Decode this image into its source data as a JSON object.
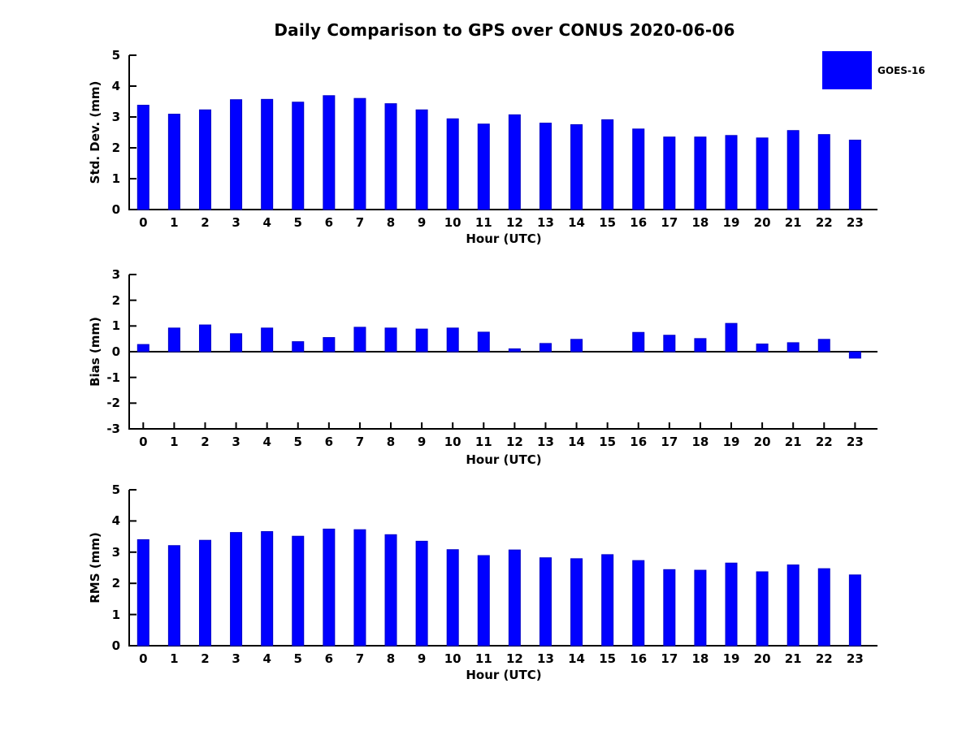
{
  "title": "Daily Comparison to GPS over CONUS 2020-06-06",
  "legend": {
    "label": "GOES-16",
    "color": "#0000FF"
  },
  "colors": {
    "bar": "#0000FF",
    "bar_edge": "#0000C8",
    "axis": "#000000",
    "text": "#000000",
    "background": "#FFFFFF"
  },
  "chart_data": [
    {
      "type": "bar",
      "title": "",
      "xlabel": "Hour (UTC)",
      "ylabel": "Std. Dev. (mm)",
      "categories": [
        "0",
        "1",
        "2",
        "3",
        "4",
        "5",
        "6",
        "7",
        "8",
        "9",
        "10",
        "11",
        "12",
        "13",
        "14",
        "15",
        "16",
        "17",
        "18",
        "19",
        "20",
        "21",
        "22",
        "23"
      ],
      "values": [
        3.38,
        3.09,
        3.23,
        3.56,
        3.57,
        3.48,
        3.69,
        3.6,
        3.43,
        3.23,
        2.94,
        2.77,
        3.07,
        2.8,
        2.75,
        2.91,
        2.61,
        2.35,
        2.35,
        2.4,
        2.32,
        2.56,
        2.43,
        2.25
      ],
      "ylim": [
        0,
        5
      ],
      "yticks": [
        0,
        1,
        2,
        3,
        4,
        5
      ],
      "grid": false,
      "legend_entry": "GOES-16",
      "legend_position": "upper-right-outside"
    },
    {
      "type": "bar",
      "title": "",
      "xlabel": "Hour (UTC)",
      "ylabel": "Bias (mm)",
      "categories": [
        "0",
        "1",
        "2",
        "3",
        "4",
        "5",
        "6",
        "7",
        "8",
        "9",
        "10",
        "11",
        "12",
        "13",
        "14",
        "15",
        "16",
        "17",
        "18",
        "19",
        "20",
        "21",
        "22",
        "23"
      ],
      "values": [
        0.28,
        0.92,
        1.04,
        0.7,
        0.92,
        0.39,
        0.55,
        0.95,
        0.92,
        0.88,
        0.92,
        0.76,
        0.11,
        0.32,
        0.48,
        0.0,
        0.75,
        0.64,
        0.51,
        1.1,
        0.3,
        0.35,
        0.48,
        -0.25
      ],
      "ylim": [
        -3,
        3
      ],
      "yticks": [
        -3,
        -2,
        -1,
        0,
        1,
        2,
        3
      ],
      "grid": false,
      "legend_entry": "GOES-16"
    },
    {
      "type": "bar",
      "title": "",
      "xlabel": "Hour (UTC)",
      "ylabel": "RMS (mm)",
      "categories": [
        "0",
        "1",
        "2",
        "3",
        "4",
        "5",
        "6",
        "7",
        "8",
        "9",
        "10",
        "11",
        "12",
        "13",
        "14",
        "15",
        "16",
        "17",
        "18",
        "19",
        "20",
        "21",
        "22",
        "23"
      ],
      "values": [
        3.4,
        3.21,
        3.38,
        3.63,
        3.66,
        3.51,
        3.74,
        3.72,
        3.56,
        3.35,
        3.08,
        2.89,
        3.07,
        2.82,
        2.79,
        2.92,
        2.73,
        2.44,
        2.42,
        2.65,
        2.37,
        2.59,
        2.47,
        2.27
      ],
      "ylim": [
        0,
        5
      ],
      "yticks": [
        0,
        1,
        2,
        3,
        4,
        5
      ],
      "grid": false,
      "legend_entry": "GOES-16"
    }
  ]
}
